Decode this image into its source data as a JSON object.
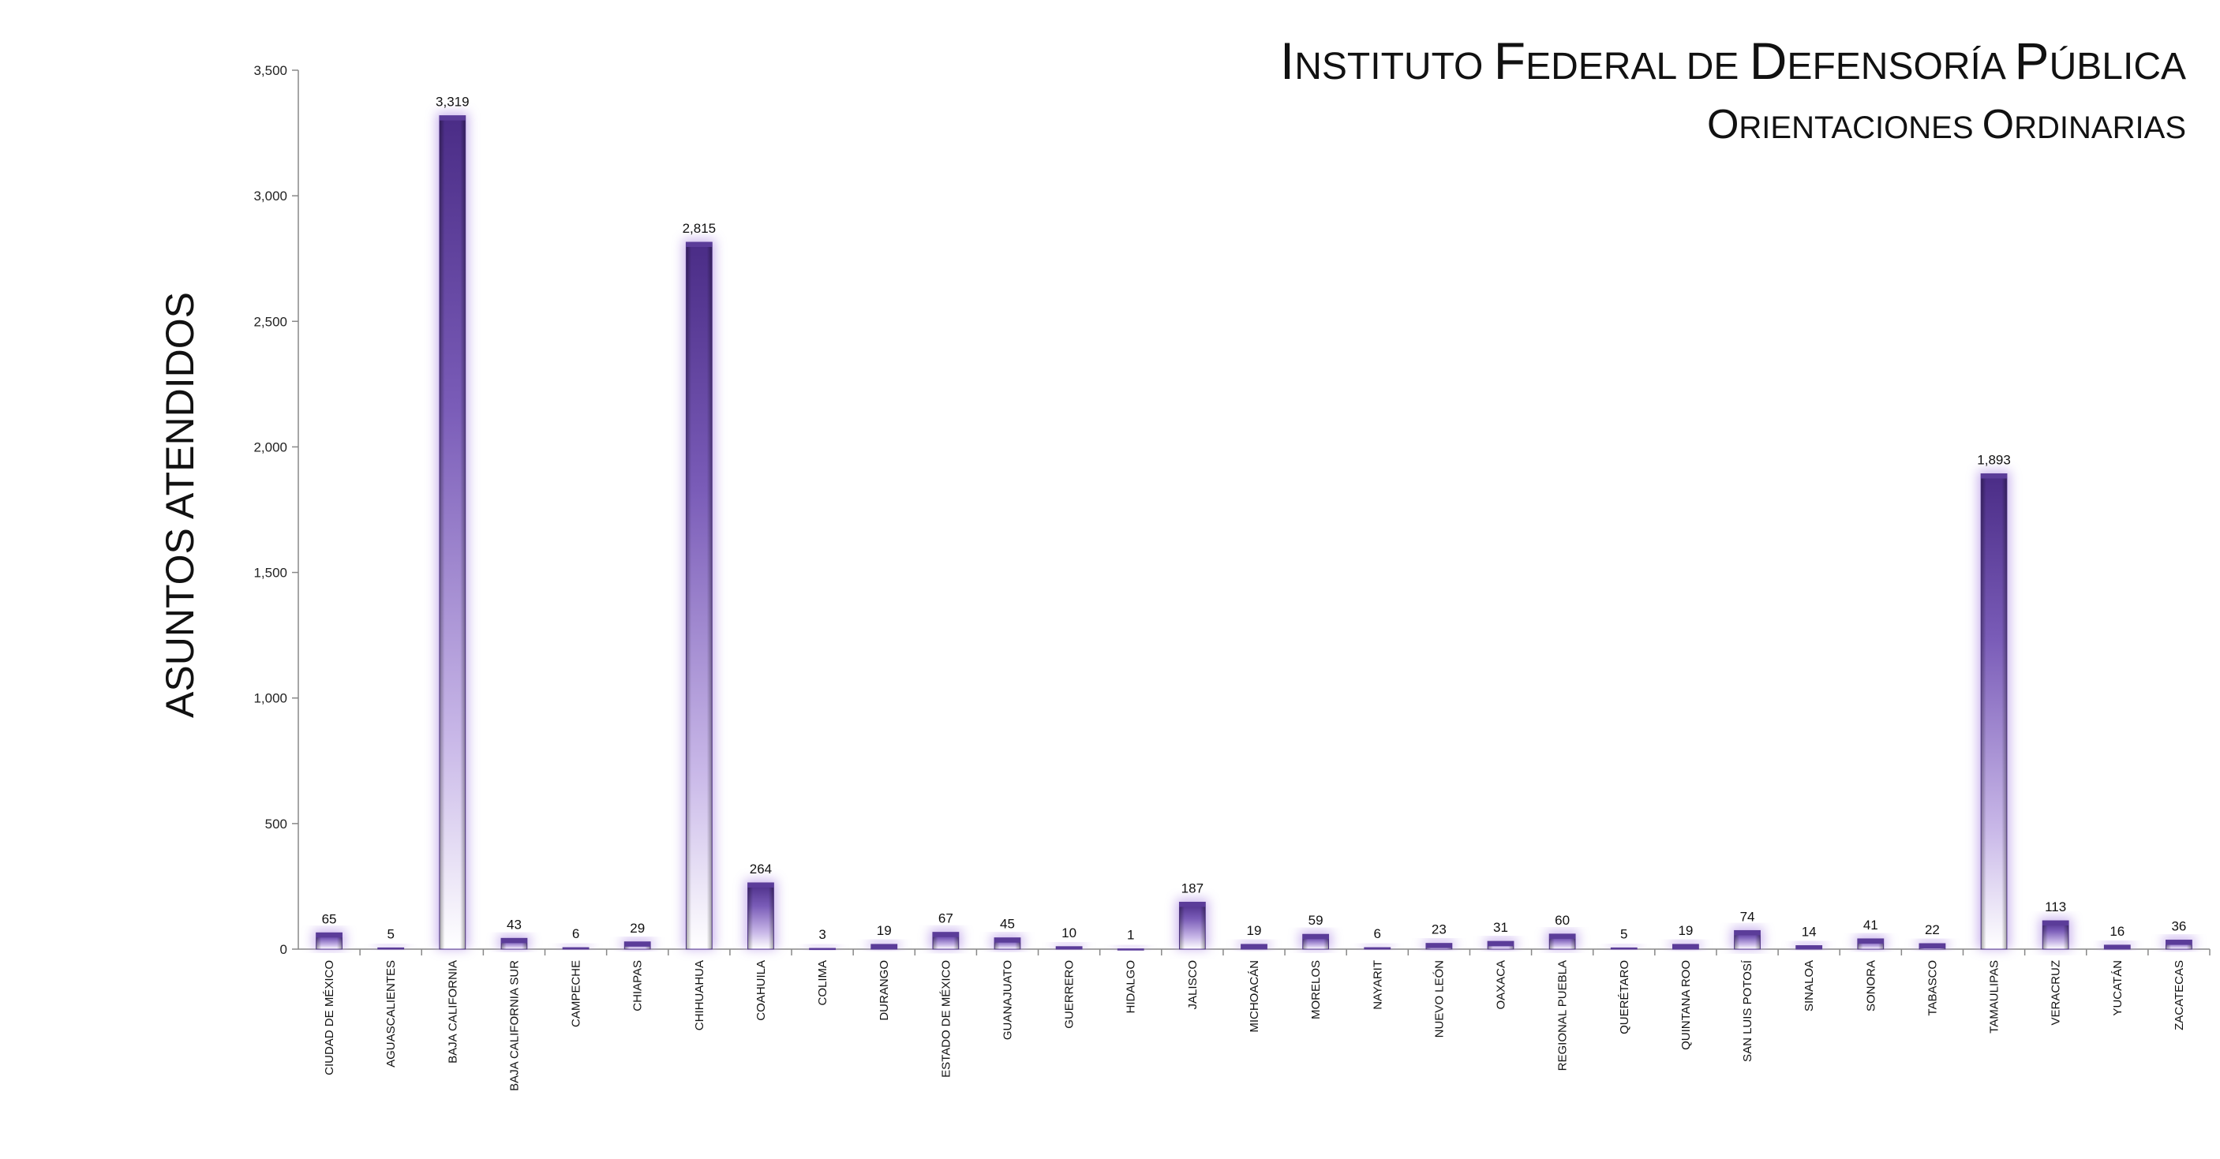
{
  "chart_data": {
    "type": "bar",
    "title": "Instituto Federal de Defensoría Pública",
    "subtitle": "Orientaciones Ordinarias",
    "xlabel": "",
    "ylabel": "ASUNTOS ATENDIDOS",
    "ylim": [
      0,
      3500
    ],
    "yticks": [
      0,
      500,
      1000,
      1500,
      2000,
      2500,
      3000,
      3500
    ],
    "ytick_labels": [
      "0",
      "500",
      "1,000",
      "1,500",
      "2,000",
      "2,500",
      "3,000",
      "3,500"
    ],
    "grid": false,
    "legend": "none",
    "bar_color": "#5b3c99",
    "glow_color": "#b99be8",
    "categories": [
      "CIUDAD DE MÉXICO",
      "AGUASCALIENTES",
      "BAJA CALIFORNIA",
      "BAJA CALIFORNIA SUR",
      "CAMPECHE",
      "CHIAPAS",
      "CHIHUAHUA",
      "COAHUILA",
      "COLIMA",
      "DURANGO",
      "ESTADO DE MÉXICO",
      "GUANAJUATO",
      "GUERRERO",
      "HIDALGO",
      "JALISCO",
      "MICHOACÁN",
      "MORELOS",
      "NAYARIT",
      "NUEVO LEÓN",
      "OAXACA",
      "REGIONAL PUEBLA",
      "QUERÉTARO",
      "QUINTANA ROO",
      "SAN LUIS POTOSÍ",
      "SINALOA",
      "SONORA",
      "TABASCO",
      "TAMAULIPAS",
      "VERACRUZ",
      "YUCATÁN",
      "ZACATECAS"
    ],
    "values": [
      65,
      5,
      3319,
      43,
      6,
      29,
      2815,
      264,
      3,
      19,
      67,
      45,
      10,
      1,
      187,
      19,
      59,
      6,
      23,
      31,
      60,
      5,
      19,
      74,
      14,
      41,
      22,
      1893,
      113,
      16,
      36
    ],
    "value_labels": [
      "65",
      "5",
      "3,319",
      "43",
      "6",
      "29",
      "2,815",
      "264",
      "3",
      "19",
      "67",
      "45",
      "10",
      "1",
      "187",
      "19",
      "59",
      "6",
      "23",
      "31",
      "60",
      "5",
      "19",
      "74",
      "14",
      "41",
      "22",
      "1,893",
      "113",
      "16",
      "36"
    ]
  }
}
